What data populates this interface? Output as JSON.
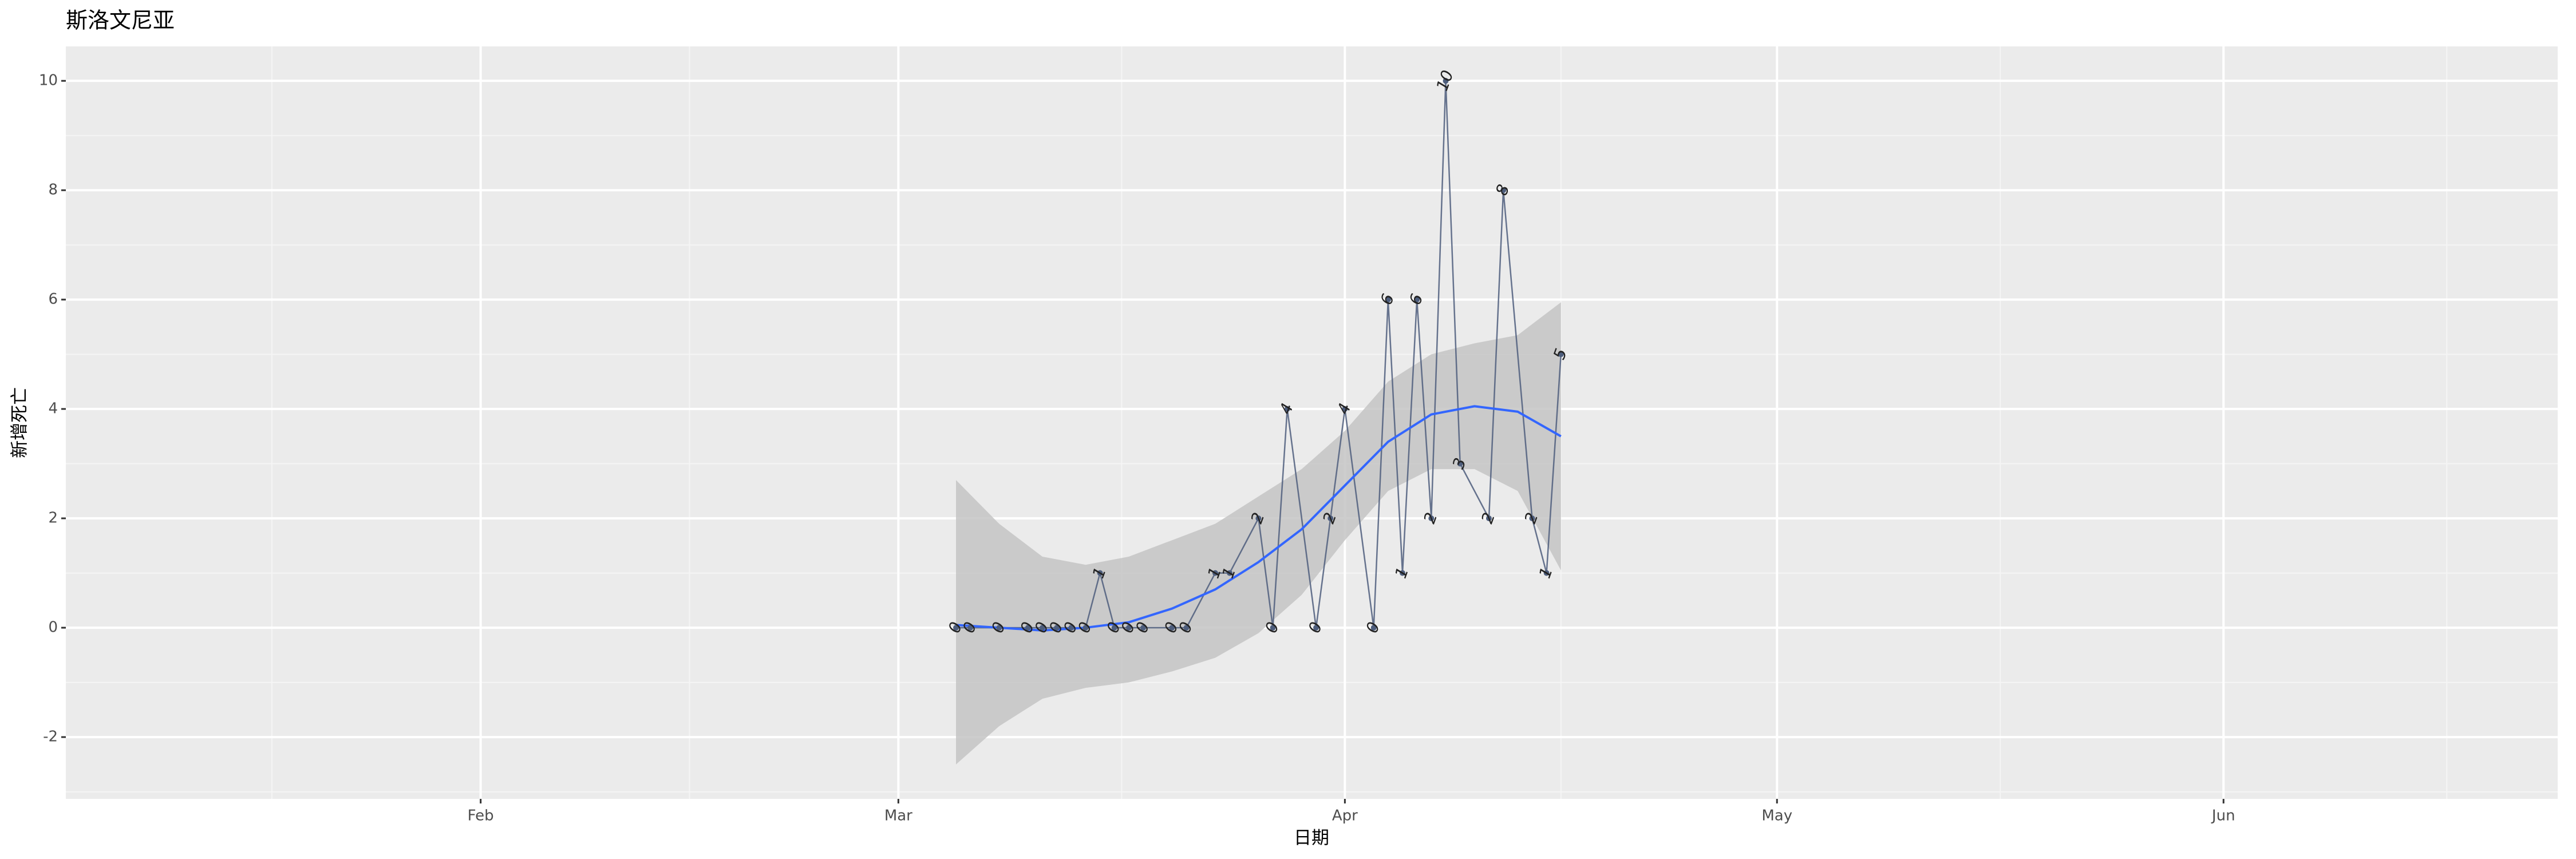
{
  "chart_data": {
    "type": "line",
    "title": "斯洛文尼亚",
    "xlabel": "日期",
    "ylabel": "新增死亡",
    "x": [
      64,
      65,
      67,
      69,
      70,
      71,
      72,
      73,
      74,
      75,
      76,
      77,
      79,
      80,
      82,
      83,
      85,
      86,
      87,
      89,
      90,
      91,
      93,
      94,
      95,
      96,
      97,
      98,
      99,
      101,
      102,
      104,
      105,
      106
    ],
    "series": [
      {
        "color": "#4d5d7c",
        "values": [
          0,
          0,
          0,
          0,
          0,
          0,
          0,
          0,
          1,
          0,
          0,
          0,
          0,
          0,
          1,
          1,
          2,
          0,
          4,
          0,
          2,
          4,
          0,
          6,
          1,
          6,
          2,
          10,
          3,
          2,
          8,
          2,
          1,
          5
        ]
      }
    ],
    "smooth": {
      "color": "#3366ff",
      "band_color": "#c4c4c4",
      "x": [
        64,
        67,
        70,
        73,
        76,
        79,
        82,
        85,
        88,
        91,
        94,
        97,
        100,
        103,
        106
      ],
      "values": [
        0.05,
        0,
        -0.05,
        0,
        0.1,
        0.35,
        0.7,
        1.2,
        1.8,
        2.6,
        3.4,
        3.9,
        4.05,
        3.95,
        3.5
      ],
      "lower": [
        -2.5,
        -1.8,
        -1.3,
        -1.1,
        -1.0,
        -0.8,
        -0.55,
        -0.1,
        0.6,
        1.6,
        2.5,
        2.9,
        2.9,
        2.5,
        1.05
      ],
      "upper": [
        2.7,
        1.9,
        1.3,
        1.15,
        1.3,
        1.6,
        1.9,
        2.4,
        2.9,
        3.6,
        4.5,
        5.0,
        5.2,
        5.35,
        5.95
      ]
    },
    "xlim": [
      2.2,
      175.2
    ],
    "xticks": [
      {
        "value": 31,
        "label": "Feb"
      },
      {
        "value": 60,
        "label": "Mar"
      },
      {
        "value": 91,
        "label": "Apr"
      },
      {
        "value": 121,
        "label": "May"
      },
      {
        "value": 152,
        "label": "Jun"
      }
    ],
    "ylim": [
      -3.13,
      10.63
    ],
    "yticks": [
      -2,
      0,
      2,
      4,
      6,
      8,
      10
    ],
    "grid": true
  }
}
